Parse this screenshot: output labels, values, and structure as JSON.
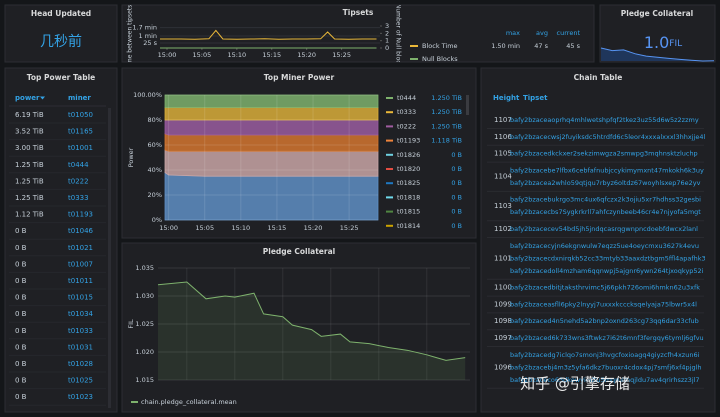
{
  "head_updated": {
    "title": "Head Updated",
    "value": "几秒前"
  },
  "tipsets": {
    "title": "Tipsets",
    "y_label": "Time between tipsets",
    "y2_label": "Number of Null blocks",
    "x": [
      -1,
      2,
      4,
      6,
      7,
      8,
      10,
      12,
      14,
      16,
      18,
      20,
      22,
      23,
      24,
      26,
      28,
      30
    ],
    "xlim": [
      -1,
      30.5
    ],
    "xticks": [
      {
        "value": 0,
        "label": "15:00"
      },
      {
        "value": 5,
        "label": "15:05"
      },
      {
        "value": 10,
        "label": "15:10"
      },
      {
        "value": 15,
        "label": "15:15"
      },
      {
        "value": 20,
        "label": "15:20"
      },
      {
        "value": 25,
        "label": "15:25"
      }
    ],
    "ylim": [
      0,
      110
    ],
    "yticks": [
      {
        "value": 25,
        "label": "25 s"
      },
      {
        "value": 60,
        "label": "1 min"
      },
      {
        "value": 102,
        "label": "1.7 min"
      }
    ],
    "y2lim": [
      0,
      3
    ],
    "y2ticks": [
      0,
      1,
      2,
      3
    ],
    "legend_columns": [
      "max",
      "avg",
      "current"
    ],
    "series": [
      {
        "name": "Block Time",
        "color": "#eab839",
        "values": [
          45,
          45,
          44,
          46,
          88,
          45,
          44,
          45,
          46,
          44,
          45,
          45,
          46,
          80,
          45,
          44,
          45,
          45
        ],
        "stats": [
          "1.50 min",
          "47 s",
          "45 s"
        ]
      },
      {
        "name": "Null Blocks",
        "color": "#7eb26d",
        "axis": "y2",
        "values": [
          0,
          0,
          0,
          0,
          0,
          0,
          0,
          0,
          0,
          0,
          0,
          0,
          0,
          0,
          0,
          0,
          0,
          0
        ]
      }
    ]
  },
  "pledge_stat": {
    "title": "Pledge Collateral",
    "value": "1.0",
    "unit": "FIL",
    "color": "#1f60c4",
    "sparkline": [
      1.0325,
      1.0298,
      1.0305,
      1.0265,
      1.024,
      1.0228,
      1.0215,
      1.0205,
      1.0195,
      1.0188,
      1.019
    ]
  },
  "power_table": {
    "title": "Top Power Table",
    "columns": [
      "power",
      "miner"
    ],
    "rows": [
      [
        "6.19 TiB",
        "t01050"
      ],
      [
        "3.52 TiB",
        "t01165"
      ],
      [
        "3.00 TiB",
        "t01001"
      ],
      [
        "1.25 TiB",
        "t0444"
      ],
      [
        "1.25 TiB",
        "t0222"
      ],
      [
        "1.25 TiB",
        "t0333"
      ],
      [
        "1.12 TiB",
        "t01193"
      ],
      [
        "0 B",
        "t01046"
      ],
      [
        "0 B",
        "t01021"
      ],
      [
        "0 B",
        "t01007"
      ],
      [
        "0 B",
        "t01011"
      ],
      [
        "0 B",
        "t01015"
      ],
      [
        "0 B",
        "t01034"
      ],
      [
        "0 B",
        "t01033"
      ],
      [
        "0 B",
        "t01031"
      ],
      [
        "0 B",
        "t01028"
      ],
      [
        "0 B",
        "t01025"
      ],
      [
        "0 B",
        "t01023"
      ]
    ]
  },
  "miner_power": {
    "title": "Top Miner Power",
    "y_label": "Power",
    "x": [
      -0.5,
      0,
      5,
      10,
      15,
      20,
      25,
      29
    ],
    "xlim": [
      -0.5,
      29
    ],
    "xticks": [
      {
        "value": 0,
        "label": "15:00"
      },
      {
        "value": 5,
        "label": "15:05"
      },
      {
        "value": 10,
        "label": "15:10"
      },
      {
        "value": 15,
        "label": "15:15"
      },
      {
        "value": 20,
        "label": "15:20"
      },
      {
        "value": 25,
        "label": "15:25"
      }
    ],
    "ylim": [
      0,
      100
    ],
    "yticks": [
      {
        "value": 0,
        "label": "0%"
      },
      {
        "value": 20,
        "label": "20%"
      },
      {
        "value": 40,
        "label": "40%"
      },
      {
        "value": 60,
        "label": "60%"
      },
      {
        "value": 80,
        "label": "80%"
      },
      {
        "value": 100,
        "label": "100.00%"
      }
    ],
    "areas": [
      {
        "color": "#5f8fc4",
        "values": [
          38,
          36,
          35,
          35,
          35,
          35,
          35,
          35
        ]
      },
      {
        "color": "#c9a6a6",
        "values": [
          18,
          19,
          20,
          20,
          20,
          20,
          20,
          20
        ]
      },
      {
        "color": "#d4762f",
        "values": [
          13,
          13,
          13,
          13,
          13,
          13,
          13,
          13
        ]
      },
      {
        "color": "#9a5da0",
        "values": [
          11,
          12,
          12,
          12,
          12,
          12,
          12,
          12
        ]
      },
      {
        "color": "#d9ae3a",
        "values": [
          10,
          10,
          10,
          10,
          10,
          10,
          10,
          10
        ]
      },
      {
        "color": "#7eb26d",
        "values": [
          10,
          10,
          10,
          10,
          10,
          10,
          10,
          10
        ]
      }
    ],
    "legend": [
      {
        "name": "t0444",
        "value": "1.250 TiB",
        "color": "#7eb26d"
      },
      {
        "name": "t0333",
        "value": "1.250 TiB",
        "color": "#eab839"
      },
      {
        "name": "t0222",
        "value": "1.250 TiB",
        "color": "#a05da0"
      },
      {
        "name": "t01193",
        "value": "1.118 TiB",
        "color": "#ef843c"
      },
      {
        "name": "t01826",
        "value": "0 B",
        "color": "#6ed0e0"
      },
      {
        "name": "t01820",
        "value": "0 B",
        "color": "#e24d42"
      },
      {
        "name": "t01825",
        "value": "0 B",
        "color": "#1f78c1"
      },
      {
        "name": "t01818",
        "value": "0 B",
        "color": "#70dbed"
      },
      {
        "name": "t01815",
        "value": "0 B",
        "color": "#508642"
      },
      {
        "name": "t01814",
        "value": "0 B",
        "color": "#cca300"
      }
    ]
  },
  "pledge_chart": {
    "title": "Pledge Collateral",
    "y_label": "FIL",
    "x": [
      -3,
      0,
      2,
      4,
      5,
      7,
      8,
      10,
      11,
      13,
      14,
      16,
      17,
      19,
      21,
      23,
      25,
      26,
      27,
      29
    ],
    "xlim": [
      -3,
      29.5
    ],
    "ylim": [
      1.015,
      1.035
    ],
    "yticks": [
      {
        "value": 1.015,
        "label": "1.015"
      },
      {
        "value": 1.02,
        "label": "1.020"
      },
      {
        "value": 1.025,
        "label": "1.025"
      },
      {
        "value": 1.03,
        "label": "1.030"
      },
      {
        "value": 1.035,
        "label": "1.035"
      }
    ],
    "series": [
      {
        "name": "chain.pledge_collateral.mean",
        "color": "#7eb26d",
        "values": [
          1.032,
          1.0325,
          1.0295,
          1.03,
          1.0298,
          1.0305,
          1.0268,
          1.0263,
          1.0248,
          1.024,
          1.0228,
          1.0232,
          1.0218,
          1.0215,
          1.0208,
          1.0203,
          1.0195,
          1.019,
          1.0185,
          1.019
        ]
      }
    ]
  },
  "chain_table": {
    "title": "Chain Table",
    "columns": [
      "Height",
      "Tipset"
    ],
    "rows": [
      {
        "height": "1107",
        "tipsets": [
          "bafy2bzaceaoprhq4mhlwetshpfqf2tkez3uz55d6w5z2zzmy"
        ]
      },
      {
        "height": "1106",
        "tipsets": [
          "bafy2bzacecwsj2fuyiksdc5htrdfd6c5leor4xxxalxxxl3hhxjje4l"
        ]
      },
      {
        "height": "1105",
        "tipsets": [
          "bafy2bzacedkckxer2sekzimwgza2smwpg3mqhnsktzluchp"
        ]
      },
      {
        "height": "1104",
        "tipsets": [
          "bafy2bzacebe7lfbx6cebfafnubjccykimymxnt47mkokh6k3uy",
          "bafy2bzacea2whlo59qtjqu7rbyz6oltdz67woyhlsxep76e2yv"
        ]
      },
      {
        "height": "1103",
        "tipsets": [
          "bafy2bzacebukrgo3mc4ux6qfczx2k3ojiu5xr7hdhss32gesbi",
          "bafy2bzacecbs7Sygkrkrll7ahfczynbeeb46cr4e7njyofa5mgt"
        ]
      },
      {
        "height": "1102",
        "tipsets": [
          "bafy2bzacecev54bd5jh5jndqcasrqgwnpncdoebfdwcx2lanl"
        ]
      },
      {
        "height": "1101",
        "tipsets": [
          "bafy2bzacecyjn6ekgnwulw7eqzz5ue4oeycmxu3627k4evu",
          "bafy2bzacecdxnirqkb52cc33mtyb33aaxdztbgm5ffl4apafhk3",
          "bafy2bzacedoll4mzham6qqnwpj5ajgnr6ywn264tjxoqkyp52i"
        ]
      },
      {
        "height": "1100",
        "tipsets": [
          "bafy2bzacedbitjtaksthrvimc5j66pkh726omi6hmkn62u3xfk"
        ]
      },
      {
        "height": "1099",
        "tipsets": [
          "bafy2bzaceasfll6pky2lnyyj7uxxxkcccksqelyaja75lbwr5x4l"
        ]
      },
      {
        "height": "1098",
        "tipsets": [
          "bafy2bzaced4n5nehd5a2bnp2oxnd263cg73qq6dar33cfub"
        ]
      },
      {
        "height": "1097",
        "tipsets": [
          "bafy2bzaced6k733wns3ftwkz7i62t6mnf3fergqy6tymlj6gfvu"
        ]
      },
      {
        "height": "1096",
        "tipsets": [
          "bafy2bzacedg7iclqo7smonj3hvgcfoxioagq4giyzcfh4xzun6i",
          "bafy2bzacebj4m3z5yfa6dkz7buoxr4cdox4pj7smfj6xf4pjglh",
          "bafy2bzaceco63dkowyiedtu5mqruimqjldu7av4qrirhszz3jl7"
        ]
      }
    ]
  },
  "watermark": "知乎 @引擎存储"
}
